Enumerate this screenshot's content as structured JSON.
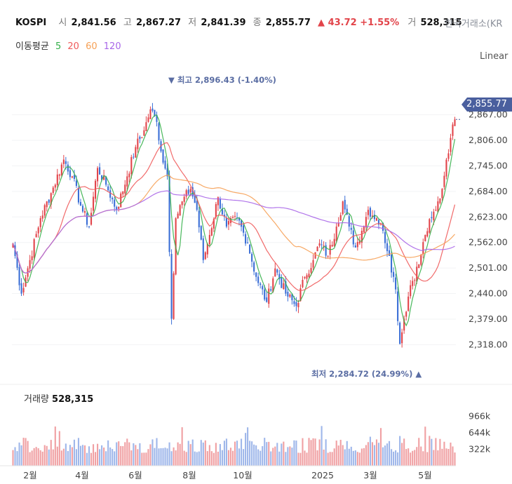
{
  "header": {
    "symbol": "KOSPI",
    "open_label": "시",
    "open": "2,841.56",
    "high_label": "고",
    "high": "2,867.27",
    "low_label": "저",
    "low": "2,841.39",
    "close_label": "종",
    "close": "2,855.77",
    "change": "▲ 43.72 +1.55%",
    "volume_label": "거",
    "volume": "528,315",
    "exchange": "한국거래소(KR"
  },
  "ma_legend": {
    "title": "이동평균",
    "periods": [
      "5",
      "20",
      "60",
      "120"
    ],
    "colors": [
      "#35b04a",
      "#ef5b5b",
      "#f6a055",
      "#a866e8"
    ]
  },
  "scale_mode": "Linear",
  "current_price_tag": "2,855.77",
  "high_marker": "▼ 최고 2,896.43 (-1.40%)",
  "low_marker": "최저 2,284.72 (24.99%) ▲",
  "volume_panel": {
    "label": "거래량",
    "value": "528,315"
  },
  "colors": {
    "up": "#e2444a",
    "down": "#3b6fd6",
    "vol_up": "#f0a0a3",
    "vol_down": "#9fb7ea"
  },
  "chart_data": {
    "type": "candlestick",
    "x_ticks": [
      "2월",
      "4월",
      "6월",
      "8월",
      "10월",
      "2025",
      "3월",
      "5월"
    ],
    "y_ticks": [
      2318,
      2379,
      2440,
      2501,
      2562,
      2623,
      2684,
      2745,
      2806,
      2867
    ],
    "y_tick_labels": [
      "2,318.00",
      "2,379.00",
      "2,440.00",
      "2,501.00",
      "2,562.00",
      "2,623.00",
      "2,684.00",
      "2,745.00",
      "2,806.00",
      "2,867.00"
    ],
    "ylim": [
      2270,
      2910
    ],
    "volume_ticks": [
      322,
      644,
      966
    ],
    "volume_tick_labels": [
      "322k",
      "644k",
      "966k"
    ],
    "volume_ylim": [
      0,
      1150
    ],
    "anchors": [
      [
        0,
        2560
      ],
      [
        4,
        2440
      ],
      [
        8,
        2520
      ],
      [
        13,
        2620
      ],
      [
        18,
        2680
      ],
      [
        24,
        2760
      ],
      [
        28,
        2720
      ],
      [
        32,
        2650
      ],
      [
        36,
        2600
      ],
      [
        40,
        2740
      ],
      [
        44,
        2700
      ],
      [
        49,
        2640
      ],
      [
        54,
        2720
      ],
      [
        58,
        2790
      ],
      [
        62,
        2830
      ],
      [
        65,
        2880
      ],
      [
        68,
        2850
      ],
      [
        70,
        2780
      ],
      [
        73,
        2720
      ],
      [
        75,
        2380
      ],
      [
        77,
        2620
      ],
      [
        80,
        2660
      ],
      [
        84,
        2690
      ],
      [
        87,
        2640
      ],
      [
        90,
        2520
      ],
      [
        93,
        2580
      ],
      [
        97,
        2670
      ],
      [
        101,
        2600
      ],
      [
        106,
        2620
      ],
      [
        111,
        2560
      ],
      [
        115,
        2480
      ],
      [
        120,
        2420
      ],
      [
        124,
        2500
      ],
      [
        129,
        2440
      ],
      [
        134,
        2410
      ],
      [
        138,
        2480
      ],
      [
        142,
        2520
      ],
      [
        145,
        2560
      ],
      [
        149,
        2530
      ],
      [
        153,
        2600
      ],
      [
        156,
        2660
      ],
      [
        159,
        2600
      ],
      [
        162,
        2550
      ],
      [
        165,
        2590
      ],
      [
        168,
        2640
      ],
      [
        172,
        2620
      ],
      [
        175,
        2590
      ],
      [
        178,
        2530
      ],
      [
        181,
        2450
      ],
      [
        183,
        2320
      ],
      [
        185,
        2380
      ],
      [
        188,
        2460
      ],
      [
        192,
        2510
      ],
      [
        195,
        2580
      ],
      [
        198,
        2620
      ],
      [
        200,
        2640
      ],
      [
        203,
        2690
      ],
      [
        205,
        2760
      ],
      [
        207,
        2812
      ],
      [
        209,
        2856
      ]
    ]
  }
}
